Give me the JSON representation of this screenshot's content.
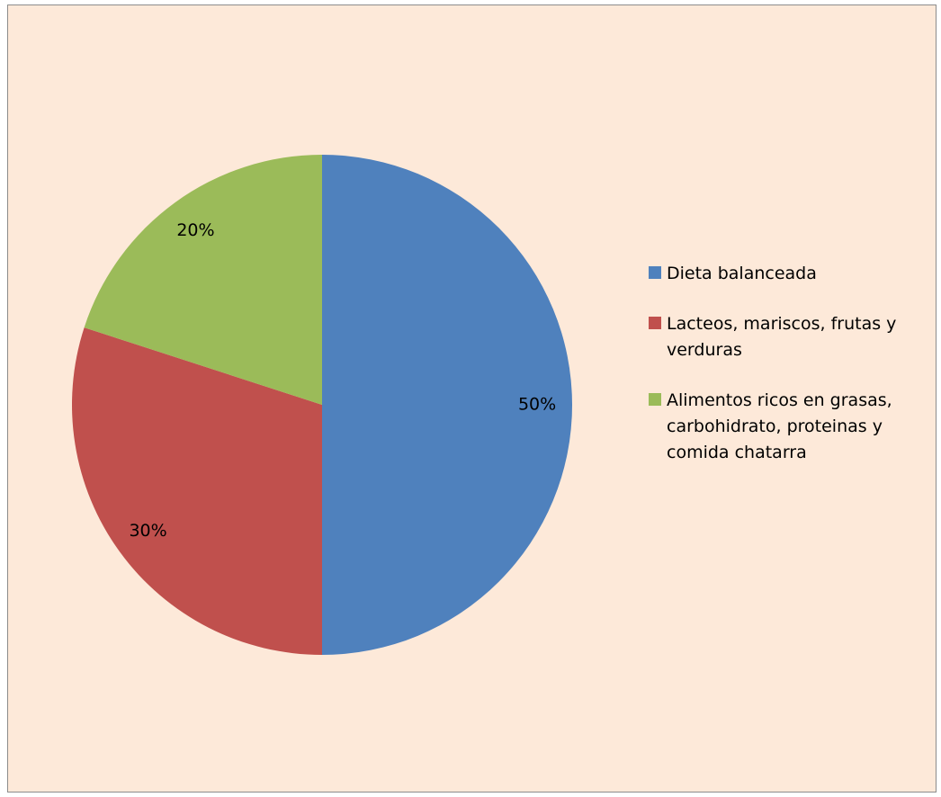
{
  "chart_data": {
    "type": "pie",
    "slices": [
      {
        "label": "Dieta balanceada",
        "value": 50,
        "display": "50%",
        "color": "#4f81bd"
      },
      {
        "label": "Lacteos, mariscos, frutas y verduras",
        "value": 30,
        "display": "30%",
        "color": "#c0504d"
      },
      {
        "label": "Alimentos ricos en grasas, carbohidrato, proteinas y comida chatarra",
        "value": 20,
        "display": "20%",
        "color": "#9bbb59"
      }
    ],
    "start_angle": "12 o'clock",
    "direction": "clockwise",
    "legend_position": "right"
  }
}
